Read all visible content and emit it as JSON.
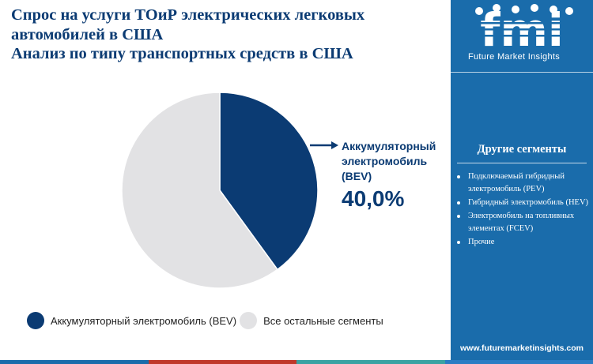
{
  "title": {
    "line1": "Спрос на услуги ТОиР электрических легковых",
    "line2": "автомобилей в США",
    "line3": "Анализ по типу транспортных средств в США"
  },
  "logo": {
    "mark": "fmi",
    "subtitle": "Future Market Insights"
  },
  "sidebar": {
    "segments_title": "Другие сегменты",
    "segments": [
      "Подключаемый гибридный электромобиль (PEV)",
      "Гибридный электромобиль (HEV)",
      "Электромобиль на топливных элементах (FCEV)",
      "Прочие"
    ],
    "url": "www.futuremarketinsights.com"
  },
  "chart_data": {
    "type": "pie",
    "slices": [
      {
        "label": "Аккумуляторный электромобиль (BEV)",
        "value": 40.0,
        "color": "#0b3b73"
      },
      {
        "label": "Все остальные сегменты",
        "value": 60.0,
        "color": "#e2e2e4"
      }
    ],
    "callout": {
      "label_lines": [
        "Аккумуляторный",
        "электромобиль",
        "(BEV)"
      ],
      "value_text": "40,0%"
    },
    "legend": [
      "Аккумуляторный электромобиль (BEV)",
      "Все остальные сегменты"
    ]
  },
  "colors": {
    "accent": "#0b3b73",
    "sidebar": "#1a6cab",
    "bottom_bar": [
      "#1a6cab",
      "#c0392b",
      "#3aa3a3",
      "#2a7dc4"
    ]
  }
}
